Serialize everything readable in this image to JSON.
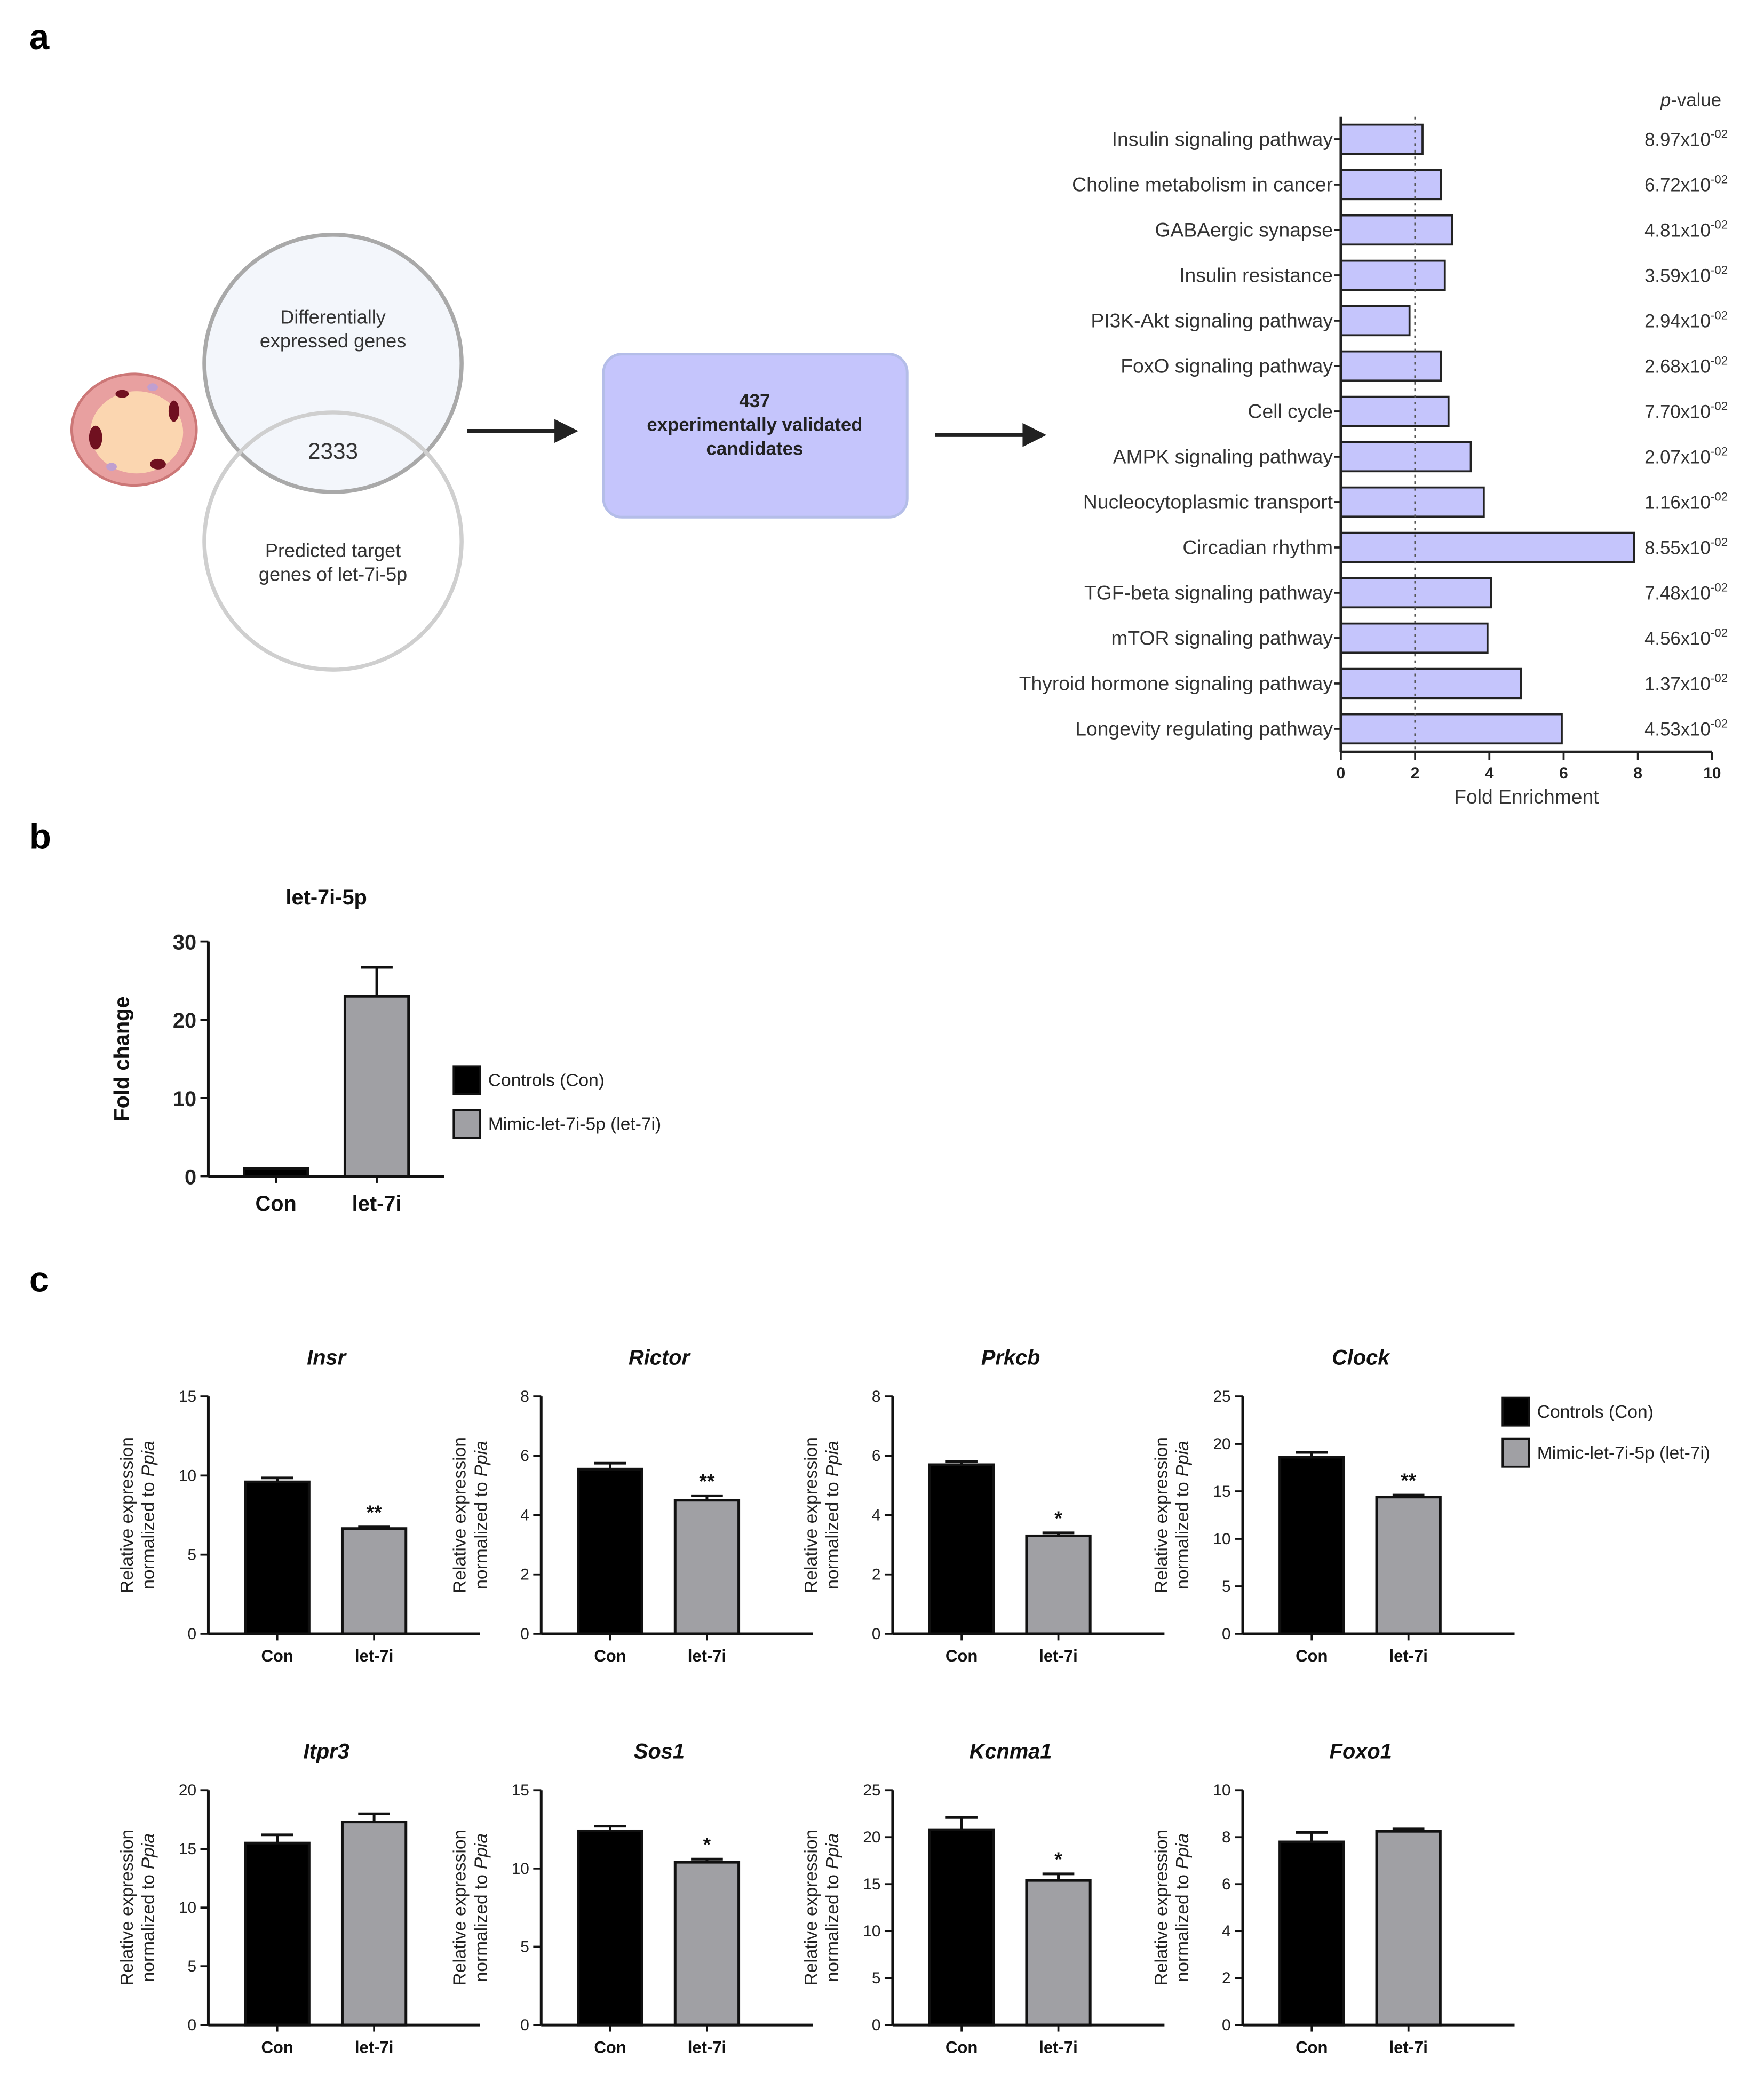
{
  "panel_labels": [
    "a",
    "b",
    "c"
  ],
  "venn": {
    "top": [
      "Differentially",
      "expressed genes"
    ],
    "overlap": "2333",
    "bottom": [
      "Predicted target",
      "genes of let-7i-5p"
    ]
  },
  "box": [
    "437",
    "experimentally validated",
    "candidates"
  ],
  "chart_data": [
    {
      "type": "hbar",
      "xlabel": "Fold Enrichment",
      "categories": [
        "Insulin signaling pathway",
        "Choline metabolism in cancer",
        "GABAergic synapse",
        "Insulin resistance",
        "PI3K-Akt signaling pathway",
        "FoxO signaling pathway",
        "Cell cycle",
        "AMPK signaling pathway",
        "Nucleocytoplasmic transport",
        "Circadian rhythm",
        "TGF-beta signaling pathway",
        "mTOR signaling pathway",
        "Thyroid hormone signaling pathway",
        "Longevity regulating pathway"
      ],
      "values": [
        2.2,
        2.7,
        3.0,
        2.8,
        1.85,
        2.7,
        2.9,
        3.5,
        3.85,
        7.9,
        4.05,
        3.95,
        4.85,
        5.95
      ],
      "color": "#c5c5fc",
      "xlim": [
        0,
        10
      ],
      "xticks": [
        0,
        2,
        4,
        6,
        8,
        10
      ],
      "reference_line": 2,
      "p_value_title": {
        "italic": "p",
        "rest": "-value"
      },
      "p_values": [
        {
          "base": "8.97x10",
          "exp": "-02"
        },
        {
          "base": "6.72x10",
          "exp": "-02"
        },
        {
          "base": "4.81x10",
          "exp": "-02"
        },
        {
          "base": "3.59x10",
          "exp": "-02"
        },
        {
          "base": "2.94x10",
          "exp": "-02"
        },
        {
          "base": "2.68x10",
          "exp": "-02"
        },
        {
          "base": "7.70x10",
          "exp": "-02"
        },
        {
          "base": "2.07x10",
          "exp": "-02"
        },
        {
          "base": "1.16x10",
          "exp": "-02"
        },
        {
          "base": "8.55x10",
          "exp": "-02"
        },
        {
          "base": "7.48x10",
          "exp": "-02"
        },
        {
          "base": "4.56x10",
          "exp": "-02"
        },
        {
          "base": "1.37x10",
          "exp": "-02"
        },
        {
          "base": "4.53x10",
          "exp": "-02"
        }
      ]
    },
    {
      "type": "bar",
      "title": "let-7i-5p",
      "ylabel": "Fold change",
      "categories": [
        "Con",
        "let-7i"
      ],
      "values": [
        1,
        23
      ],
      "errors": [
        0,
        3.7
      ],
      "colors": [
        "#000000",
        "#a0a0a4"
      ],
      "ylim": [
        0,
        30
      ],
      "yticks": [
        0,
        10,
        20,
        30
      ],
      "legend": [
        "Controls (Con)",
        "Mimic-let-7i-5p (let-7i)"
      ]
    },
    {
      "type": "bar",
      "title": "Insr",
      "ylabel": [
        "Relative expression",
        "normalized to",
        "Ppia"
      ],
      "categories": [
        "Con",
        "let-7i"
      ],
      "values": [
        9.6,
        6.65
      ],
      "errors": [
        0.25,
        0.1
      ],
      "colors": [
        "#000000",
        "#a0a0a4"
      ],
      "significance": [
        null,
        "**"
      ],
      "ylim": [
        0,
        15
      ],
      "yticks": [
        0,
        5,
        10,
        15
      ]
    },
    {
      "type": "bar",
      "title": "Rictor",
      "ylabel": [
        "Relative expression",
        "normalized to",
        "Ppia"
      ],
      "categories": [
        "Con",
        "let-7i"
      ],
      "values": [
        5.55,
        4.5
      ],
      "errors": [
        0.2,
        0.15
      ],
      "colors": [
        "#000000",
        "#a0a0a4"
      ],
      "significance": [
        null,
        "**"
      ],
      "ylim": [
        0,
        8
      ],
      "yticks": [
        0,
        2,
        4,
        6,
        8
      ]
    },
    {
      "type": "bar",
      "title": "Prkcb",
      "ylabel": [
        "Relative expression",
        "normalized to",
        "Ppia"
      ],
      "categories": [
        "Con",
        "let-7i"
      ],
      "values": [
        5.7,
        3.3
      ],
      "errors": [
        0.1,
        0.1
      ],
      "colors": [
        "#000000",
        "#a0a0a4"
      ],
      "significance": [
        null,
        "*"
      ],
      "ylim": [
        0,
        8
      ],
      "yticks": [
        0,
        2,
        4,
        6,
        8
      ]
    },
    {
      "type": "bar",
      "title": "Clock",
      "ylabel": [
        "Relative expression",
        "normalized to",
        "Ppia"
      ],
      "categories": [
        "Con",
        "let-7i"
      ],
      "values": [
        18.6,
        14.4
      ],
      "errors": [
        0.5,
        0.2
      ],
      "colors": [
        "#000000",
        "#a0a0a4"
      ],
      "significance": [
        null,
        "**"
      ],
      "ylim": [
        0,
        25
      ],
      "yticks": [
        0,
        5,
        10,
        15,
        20,
        25
      ],
      "legend": [
        "Controls (Con)",
        "Mimic-let-7i-5p (let-7i)"
      ]
    },
    {
      "type": "bar",
      "title": "Itpr3",
      "ylabel": [
        "Relative expression",
        "normalized to",
        "Ppia"
      ],
      "categories": [
        "Con",
        "let-7i"
      ],
      "values": [
        15.5,
        17.3
      ],
      "errors": [
        0.7,
        0.7
      ],
      "colors": [
        "#000000",
        "#a0a0a4"
      ],
      "ylim": [
        0,
        20
      ],
      "yticks": [
        0,
        5,
        10,
        15,
        20
      ]
    },
    {
      "type": "bar",
      "title": "Sos1",
      "ylabel": [
        "Relative expression",
        "normalized to",
        "Ppia"
      ],
      "categories": [
        "Con",
        "let-7i"
      ],
      "values": [
        12.4,
        10.4
      ],
      "errors": [
        0.3,
        0.2
      ],
      "colors": [
        "#000000",
        "#a0a0a4"
      ],
      "significance": [
        null,
        "*"
      ],
      "ylim": [
        0,
        15
      ],
      "yticks": [
        0,
        5,
        10,
        15
      ]
    },
    {
      "type": "bar",
      "title": "Kcnma1",
      "ylabel": [
        "Relative expression",
        "normalized to",
        "Ppia"
      ],
      "categories": [
        "Con",
        "let-7i"
      ],
      "values": [
        20.8,
        15.4
      ],
      "errors": [
        1.3,
        0.7
      ],
      "colors": [
        "#000000",
        "#a0a0a4"
      ],
      "significance": [
        null,
        "*"
      ],
      "ylim": [
        0,
        25
      ],
      "yticks": [
        0,
        5,
        10,
        15,
        20,
        25
      ]
    },
    {
      "type": "bar",
      "title": "Foxo1",
      "ylabel": [
        "Relative expression",
        "normalized to",
        "Ppia"
      ],
      "categories": [
        "Con",
        "let-7i"
      ],
      "values": [
        7.8,
        8.25
      ],
      "errors": [
        0.4,
        0.1
      ],
      "colors": [
        "#000000",
        "#a0a0a4"
      ],
      "ylim": [
        0,
        10
      ],
      "yticks": [
        0,
        2,
        4,
        6,
        8,
        10
      ]
    }
  ]
}
